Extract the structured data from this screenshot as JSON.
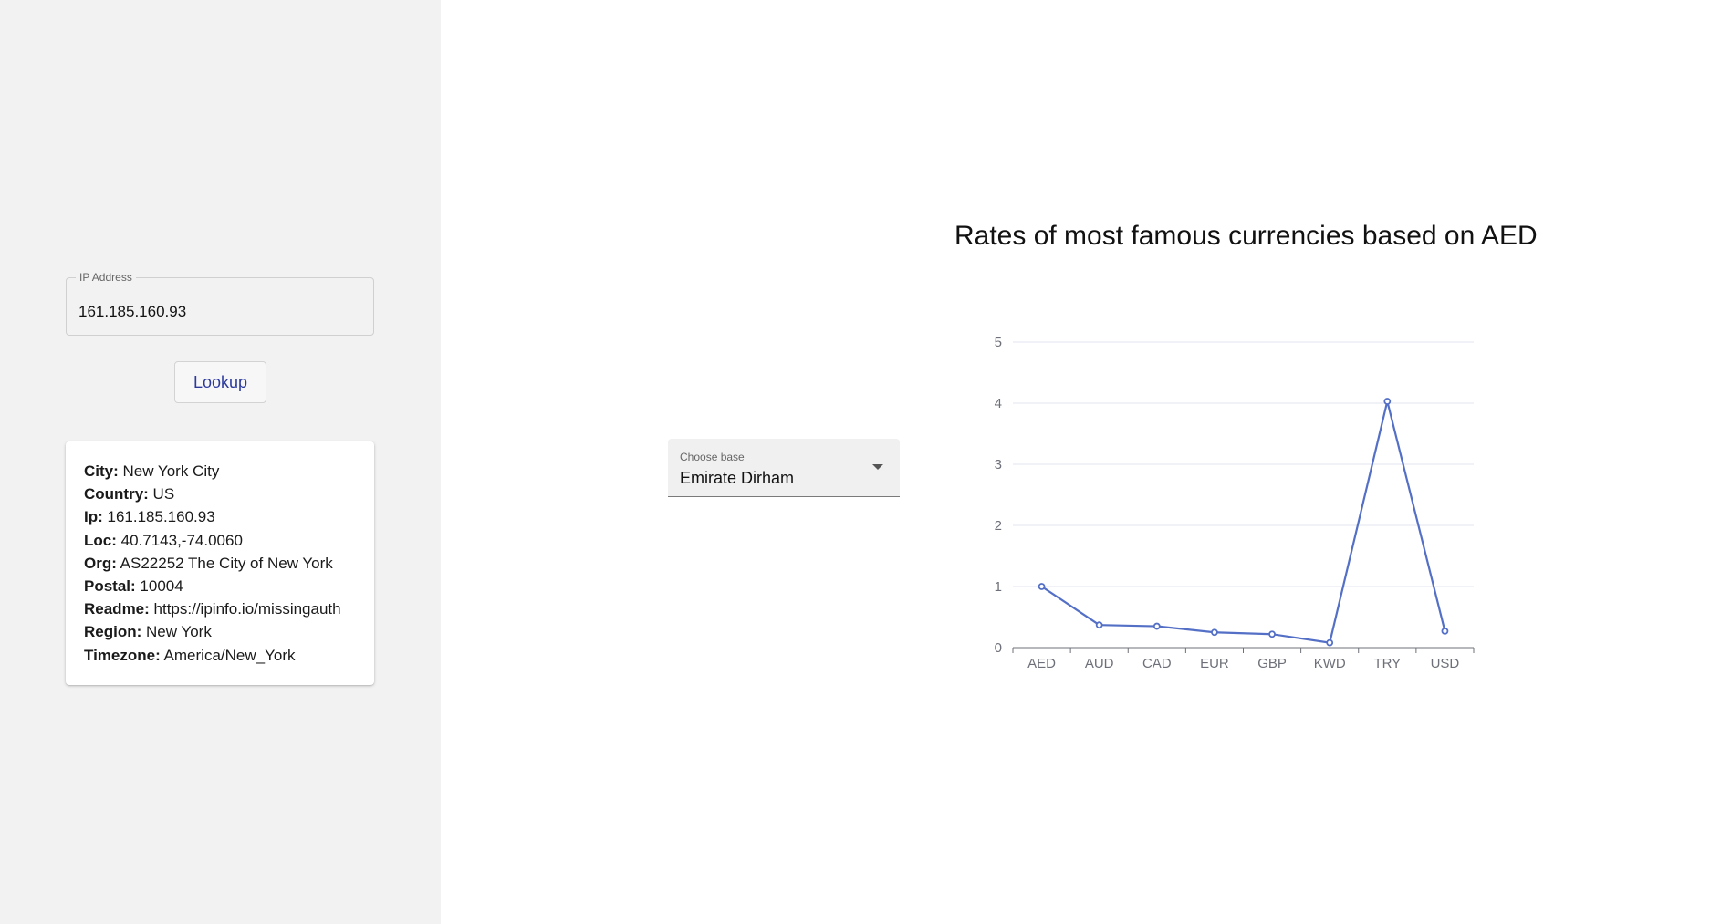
{
  "sidebar": {
    "ip_field": {
      "label": "IP Address",
      "value": "161.185.160.93"
    },
    "lookup_label": "Lookup",
    "info": [
      {
        "key": "City:",
        "value": "New York City"
      },
      {
        "key": "Country:",
        "value": "US"
      },
      {
        "key": "Ip:",
        "value": "161.185.160.93"
      },
      {
        "key": "Loc:",
        "value": "40.7143,-74.0060"
      },
      {
        "key": "Org:",
        "value": "AS22252 The City of New York"
      },
      {
        "key": "Postal:",
        "value": "10004"
      },
      {
        "key": "Readme:",
        "value": "https://ipinfo.io/missingauth"
      },
      {
        "key": "Region:",
        "value": "New York"
      },
      {
        "key": "Timezone:",
        "value": "America/New_York"
      }
    ]
  },
  "base_select": {
    "label": "Choose base",
    "selected": "Emirate Dirham"
  },
  "colors": {
    "sidebar_bg": "#f2f2f2",
    "line": "#5470c6",
    "button_text": "#2c3a9e"
  },
  "chart_data": {
    "type": "line",
    "title": "Rates of most famous currencies based on AED",
    "categories": [
      "AED",
      "AUD",
      "CAD",
      "EUR",
      "GBP",
      "KWD",
      "TRY",
      "USD"
    ],
    "values": [
      1,
      0.37,
      0.35,
      0.25,
      0.22,
      0.08,
      4.03,
      0.27
    ],
    "ylim": [
      0,
      5
    ],
    "yticks": [
      "0",
      "1",
      "2",
      "3",
      "4",
      "5"
    ],
    "grid": true,
    "xlabel": "",
    "ylabel": ""
  }
}
